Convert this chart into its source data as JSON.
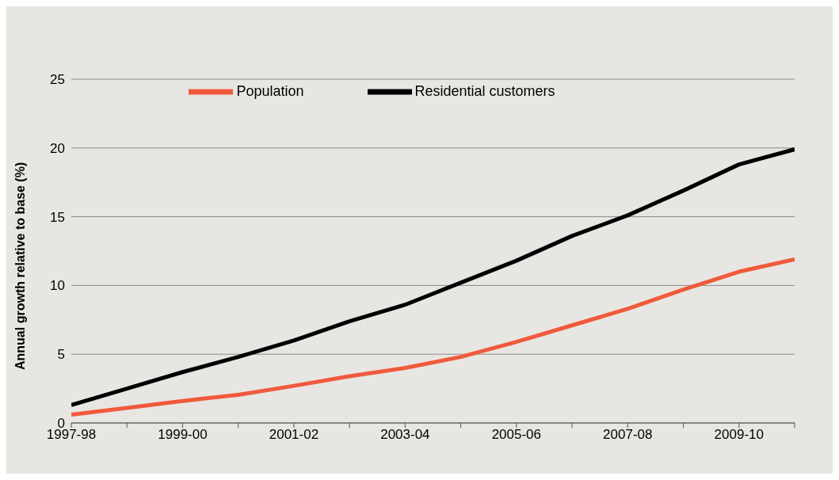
{
  "chart_data": {
    "type": "line",
    "ylabel": "Annual growth relative to base (%)",
    "categories": [
      "1997-98",
      null,
      "1999-00",
      null,
      "2001-02",
      null,
      "2003-04",
      null,
      "2005-06",
      null,
      "2007-08",
      null,
      "2009-10",
      null
    ],
    "series": [
      {
        "name": "Residential customers",
        "color": "#000000",
        "values": [
          1.3,
          2.5,
          3.7,
          4.8,
          6.0,
          7.4,
          8.6,
          10.2,
          11.8,
          13.6,
          15.1,
          16.9,
          18.8,
          19.9
        ]
      },
      {
        "name": "Population",
        "color": "#f05a3c",
        "values": [
          0.6,
          1.1,
          1.6,
          2.05,
          2.7,
          3.4,
          4.0,
          4.8,
          5.9,
          7.1,
          8.3,
          9.7,
          11.0,
          11.9
        ]
      }
    ],
    "ylim": [
      0,
      25
    ],
    "yticks": [
      0,
      5,
      10,
      15,
      20,
      25
    ],
    "grid": "y",
    "legend": "top",
    "marker": "none",
    "line_style": "solid"
  }
}
